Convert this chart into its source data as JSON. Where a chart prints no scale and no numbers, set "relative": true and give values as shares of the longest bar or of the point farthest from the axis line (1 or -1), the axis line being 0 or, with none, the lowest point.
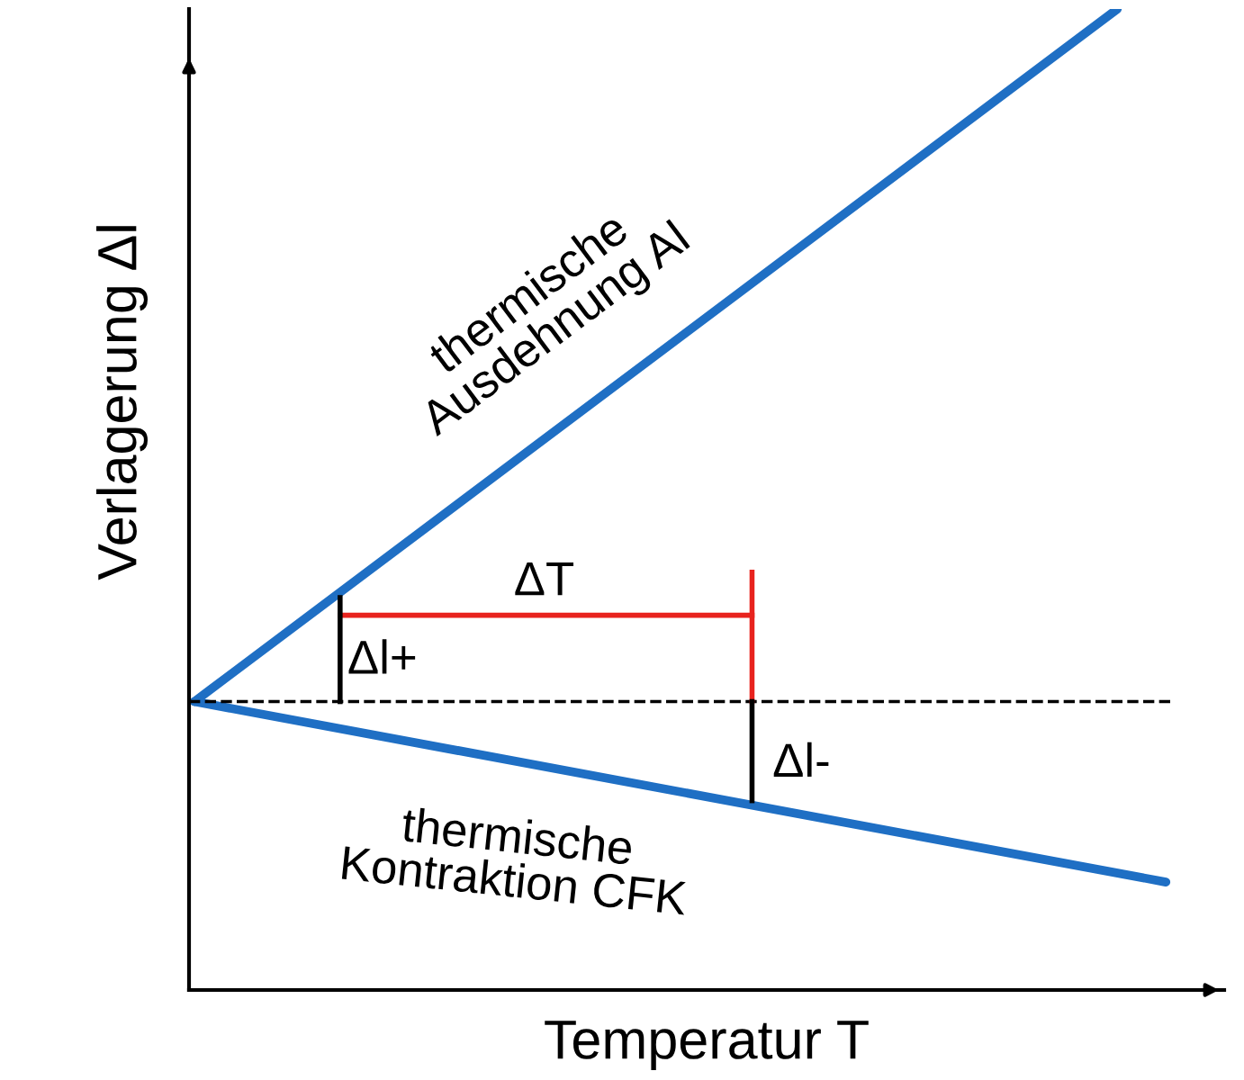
{
  "chart_data": {
    "type": "line",
    "relative": true,
    "xlabel": "Temperatur T",
    "ylabel": "Verlagerung Δl",
    "categories": [
      null,
      null,
      null,
      null,
      null,
      null,
      null,
      null,
      null,
      null,
      null,
      null,
      null,
      null,
      null,
      null,
      null,
      null,
      null,
      null,
      null
    ],
    "series": [
      {
        "color": "#1f6fc4",
        "values": [
          0.294,
          null,
          null,
          null,
          null,
          null,
          null,
          null,
          null,
          null,
          null,
          null,
          null,
          null,
          null,
          null,
          null,
          null,
          null,
          1,
          null
        ]
      },
      {
        "color": "#1f6fc4",
        "values": [
          0.294,
          null,
          null,
          null,
          null,
          null,
          null,
          null,
          null,
          null,
          null,
          null,
          null,
          null,
          null,
          null,
          null,
          null,
          null,
          null,
          0.11
        ]
      }
    ],
    "ref_lines": [
      {
        "axis": "y",
        "value": 0.294,
        "color": "#000000",
        "line_style": "dashed"
      }
    ],
    "annotations": [
      "thermische\nAusdehnung Al",
      "thermische\nKontraktion CFK",
      "ΔT",
      "Δl+",
      "Δl-"
    ],
    "grid": false
  }
}
